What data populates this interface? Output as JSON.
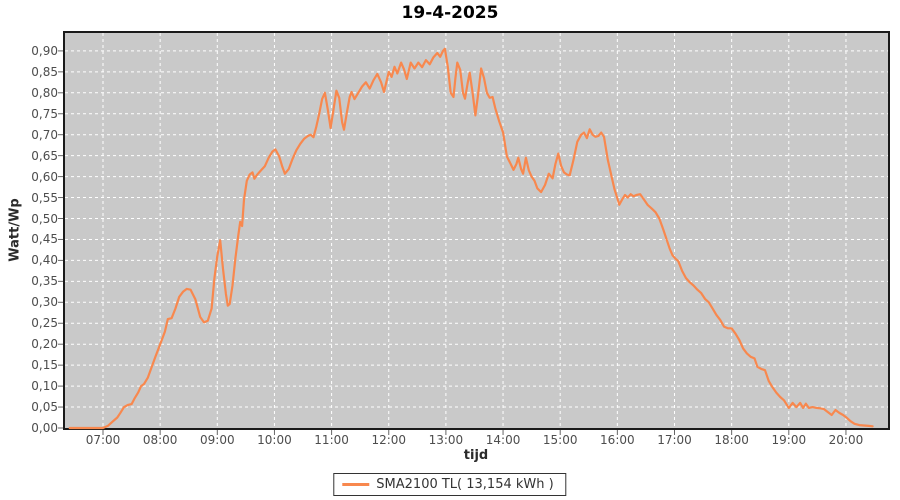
{
  "title": "19-4-2025",
  "colors": {
    "series": "#F8884E",
    "plot_background": "#C9C9C9",
    "gridline": "#FFFFFF",
    "plot_border": "#1A1A1A",
    "tick_mark": "#666666",
    "tick_text": "#4D4D4D",
    "legend_border": "#333333"
  },
  "y_axis": {
    "label": "Watt/Wp",
    "ticks": [
      {
        "label": "0,00",
        "v": 0.0
      },
      {
        "label": "0,05",
        "v": 0.05
      },
      {
        "label": "0,10",
        "v": 0.1
      },
      {
        "label": "0,15",
        "v": 0.15
      },
      {
        "label": "0,20",
        "v": 0.2
      },
      {
        "label": "0,25",
        "v": 0.25
      },
      {
        "label": "0,30",
        "v": 0.3
      },
      {
        "label": "0,35",
        "v": 0.35
      },
      {
        "label": "0,40",
        "v": 0.4
      },
      {
        "label": "0,45",
        "v": 0.45
      },
      {
        "label": "0,50",
        "v": 0.5
      },
      {
        "label": "0,55",
        "v": 0.55
      },
      {
        "label": "0,60",
        "v": 0.6
      },
      {
        "label": "0,65",
        "v": 0.65
      },
      {
        "label": "0,70",
        "v": 0.7
      },
      {
        "label": "0,75",
        "v": 0.75
      },
      {
        "label": "0,80",
        "v": 0.8
      },
      {
        "label": "0,85",
        "v": 0.85
      },
      {
        "label": "0,90",
        "v": 0.9
      }
    ]
  },
  "x_axis": {
    "label": "tijd",
    "ticks": [
      {
        "label": "07:00",
        "t": 7
      },
      {
        "label": "08:00",
        "t": 8
      },
      {
        "label": "09:00",
        "t": 9
      },
      {
        "label": "10:00",
        "t": 10
      },
      {
        "label": "11:00",
        "t": 11
      },
      {
        "label": "12:00",
        "t": 12
      },
      {
        "label": "13:00",
        "t": 13
      },
      {
        "label": "14:00",
        "t": 14
      },
      {
        "label": "15:00",
        "t": 15
      },
      {
        "label": "16:00",
        "t": 16
      },
      {
        "label": "17:00",
        "t": 17
      },
      {
        "label": "18:00",
        "t": 18
      },
      {
        "label": "19:00",
        "t": 19
      },
      {
        "label": "20:00",
        "t": 20
      }
    ]
  },
  "legend": {
    "label": "SMA2100 TL( 13,154 kWh )"
  },
  "chart_data": {
    "type": "line",
    "title": "19-4-2025",
    "xlabel": "tijd",
    "ylabel": "Watt/Wp",
    "ylim": [
      0,
      0.9
    ],
    "xlim_time": [
      "06:19",
      "20:41"
    ],
    "grid": true,
    "legend_position": "bottom-center",
    "series": [
      {
        "name": "SMA2100 TL( 13,154 kWh )",
        "color": "#F8884E",
        "points": [
          [
            "06:25",
            0
          ],
          [
            "06:40",
            0
          ],
          [
            "07:00",
            0
          ],
          [
            "07:05",
            0.005
          ],
          [
            "07:10",
            0.015
          ],
          [
            "07:15",
            0.025
          ],
          [
            "07:18",
            0.035
          ],
          [
            "07:22",
            0.05
          ],
          [
            "07:26",
            0.055
          ],
          [
            "07:30",
            0.057
          ],
          [
            "07:33",
            0.07
          ],
          [
            "07:37",
            0.085
          ],
          [
            "07:40",
            0.1
          ],
          [
            "07:43",
            0.105
          ],
          [
            "07:47",
            0.12
          ],
          [
            "07:51",
            0.145
          ],
          [
            "07:55",
            0.17
          ],
          [
            "08:00",
            0.2
          ],
          [
            "08:05",
            0.23
          ],
          [
            "08:08",
            0.26
          ],
          [
            "08:12",
            0.262
          ],
          [
            "08:16",
            0.285
          ],
          [
            "08:20",
            0.313
          ],
          [
            "08:24",
            0.325
          ],
          [
            "08:28",
            0.332
          ],
          [
            "08:32",
            0.33
          ],
          [
            "08:37",
            0.307
          ],
          [
            "08:42",
            0.265
          ],
          [
            "08:46",
            0.252
          ],
          [
            "08:50",
            0.256
          ],
          [
            "08:54",
            0.285
          ],
          [
            "08:57",
            0.357
          ],
          [
            "09:00",
            0.41
          ],
          [
            "09:03",
            0.448
          ],
          [
            "09:06",
            0.38
          ],
          [
            "09:09",
            0.32
          ],
          [
            "09:11",
            0.292
          ],
          [
            "09:13",
            0.296
          ],
          [
            "09:16",
            0.34
          ],
          [
            "09:19",
            0.405
          ],
          [
            "09:22",
            0.46
          ],
          [
            "09:24",
            0.492
          ],
          [
            "09:26",
            0.482
          ],
          [
            "09:28",
            0.545
          ],
          [
            "09:31",
            0.59
          ],
          [
            "09:34",
            0.605
          ],
          [
            "09:37",
            0.61
          ],
          [
            "09:39",
            0.595
          ],
          [
            "09:42",
            0.605
          ],
          [
            "09:46",
            0.615
          ],
          [
            "09:50",
            0.625
          ],
          [
            "09:54",
            0.645
          ],
          [
            "09:58",
            0.66
          ],
          [
            "10:01",
            0.665
          ],
          [
            "10:05",
            0.648
          ],
          [
            "10:08",
            0.625
          ],
          [
            "10:11",
            0.607
          ],
          [
            "10:15",
            0.618
          ],
          [
            "10:19",
            0.642
          ],
          [
            "10:23",
            0.663
          ],
          [
            "10:27",
            0.678
          ],
          [
            "10:31",
            0.69
          ],
          [
            "10:35",
            0.697
          ],
          [
            "10:38",
            0.7
          ],
          [
            "10:41",
            0.694
          ],
          [
            "10:44",
            0.72
          ],
          [
            "10:47",
            0.75
          ],
          [
            "10:50",
            0.785
          ],
          [
            "10:53",
            0.8
          ],
          [
            "10:56",
            0.76
          ],
          [
            "10:59",
            0.716
          ],
          [
            "11:02",
            0.76
          ],
          [
            "11:05",
            0.805
          ],
          [
            "11:08",
            0.788
          ],
          [
            "11:11",
            0.73
          ],
          [
            "11:13",
            0.712
          ],
          [
            "11:16",
            0.752
          ],
          [
            "11:19",
            0.79
          ],
          [
            "11:21",
            0.802
          ],
          [
            "11:24",
            0.785
          ],
          [
            "11:28",
            0.8
          ],
          [
            "11:32",
            0.815
          ],
          [
            "11:36",
            0.825
          ],
          [
            "11:40",
            0.81
          ],
          [
            "11:44",
            0.83
          ],
          [
            "11:48",
            0.845
          ],
          [
            "11:52",
            0.825
          ],
          [
            "11:55",
            0.802
          ],
          [
            "11:58",
            0.83
          ],
          [
            "12:00",
            0.85
          ],
          [
            "12:03",
            0.838
          ],
          [
            "12:06",
            0.862
          ],
          [
            "12:09",
            0.846
          ],
          [
            "12:13",
            0.872
          ],
          [
            "12:16",
            0.856
          ],
          [
            "12:19",
            0.833
          ],
          [
            "12:23",
            0.872
          ],
          [
            "12:27",
            0.858
          ],
          [
            "12:31",
            0.872
          ],
          [
            "12:35",
            0.861
          ],
          [
            "12:39",
            0.878
          ],
          [
            "12:43",
            0.868
          ],
          [
            "12:47",
            0.885
          ],
          [
            "12:51",
            0.895
          ],
          [
            "12:54",
            0.886
          ],
          [
            "12:57",
            0.9
          ],
          [
            "12:59",
            0.905
          ],
          [
            "13:02",
            0.862
          ],
          [
            "13:05",
            0.8
          ],
          [
            "13:08",
            0.79
          ],
          [
            "13:10",
            0.835
          ],
          [
            "13:12",
            0.872
          ],
          [
            "13:15",
            0.855
          ],
          [
            "13:18",
            0.8
          ],
          [
            "13:20",
            0.786
          ],
          [
            "13:23",
            0.825
          ],
          [
            "13:25",
            0.848
          ],
          [
            "13:28",
            0.8
          ],
          [
            "13:31",
            0.746
          ],
          [
            "13:34",
            0.8
          ],
          [
            "13:37",
            0.858
          ],
          [
            "13:40",
            0.835
          ],
          [
            "13:43",
            0.8
          ],
          [
            "13:46",
            0.788
          ],
          [
            "13:49",
            0.79
          ],
          [
            "13:52",
            0.762
          ],
          [
            "13:56",
            0.732
          ],
          [
            "14:00",
            0.705
          ],
          [
            "14:04",
            0.648
          ],
          [
            "14:08",
            0.63
          ],
          [
            "14:11",
            0.616
          ],
          [
            "14:14",
            0.63
          ],
          [
            "14:16",
            0.645
          ],
          [
            "14:19",
            0.618
          ],
          [
            "14:21",
            0.607
          ],
          [
            "14:24",
            0.645
          ],
          [
            "14:27",
            0.615
          ],
          [
            "14:30",
            0.6
          ],
          [
            "14:33",
            0.59
          ],
          [
            "14:36",
            0.572
          ],
          [
            "14:40",
            0.563
          ],
          [
            "14:44",
            0.58
          ],
          [
            "14:48",
            0.607
          ],
          [
            "14:52",
            0.596
          ],
          [
            "14:55",
            0.63
          ],
          [
            "14:58",
            0.655
          ],
          [
            "15:01",
            0.625
          ],
          [
            "15:04",
            0.61
          ],
          [
            "15:07",
            0.605
          ],
          [
            "15:10",
            0.603
          ],
          [
            "15:14",
            0.64
          ],
          [
            "15:18",
            0.683
          ],
          [
            "15:22",
            0.7
          ],
          [
            "15:25",
            0.705
          ],
          [
            "15:28",
            0.692
          ],
          [
            "15:31",
            0.713
          ],
          [
            "15:34",
            0.7
          ],
          [
            "15:37",
            0.695
          ],
          [
            "15:40",
            0.697
          ],
          [
            "15:43",
            0.705
          ],
          [
            "15:46",
            0.695
          ],
          [
            "15:50",
            0.64
          ],
          [
            "15:54",
            0.6
          ],
          [
            "15:57",
            0.57
          ],
          [
            "16:00",
            0.548
          ],
          [
            "16:02",
            0.533
          ],
          [
            "16:05",
            0.545
          ],
          [
            "16:08",
            0.556
          ],
          [
            "16:11",
            0.55
          ],
          [
            "16:14",
            0.558
          ],
          [
            "16:17",
            0.553
          ],
          [
            "16:20",
            0.556
          ],
          [
            "16:24",
            0.558
          ],
          [
            "16:28",
            0.545
          ],
          [
            "16:32",
            0.532
          ],
          [
            "16:36",
            0.524
          ],
          [
            "16:40",
            0.515
          ],
          [
            "16:44",
            0.5
          ],
          [
            "16:48",
            0.475
          ],
          [
            "16:52",
            0.448
          ],
          [
            "16:55",
            0.428
          ],
          [
            "16:58",
            0.412
          ],
          [
            "17:01",
            0.404
          ],
          [
            "17:04",
            0.398
          ],
          [
            "17:08",
            0.375
          ],
          [
            "17:12",
            0.358
          ],
          [
            "17:16",
            0.348
          ],
          [
            "17:20",
            0.34
          ],
          [
            "17:24",
            0.33
          ],
          [
            "17:28",
            0.322
          ],
          [
            "17:32",
            0.308
          ],
          [
            "17:36",
            0.3
          ],
          [
            "17:40",
            0.285
          ],
          [
            "17:44",
            0.27
          ],
          [
            "17:48",
            0.258
          ],
          [
            "17:52",
            0.242
          ],
          [
            "17:56",
            0.238
          ],
          [
            "18:00",
            0.238
          ],
          [
            "18:04",
            0.225
          ],
          [
            "18:08",
            0.21
          ],
          [
            "18:12",
            0.19
          ],
          [
            "18:16",
            0.178
          ],
          [
            "18:20",
            0.17
          ],
          [
            "18:24",
            0.166
          ],
          [
            "18:27",
            0.146
          ],
          [
            "18:31",
            0.141
          ],
          [
            "18:35",
            0.138
          ],
          [
            "18:39",
            0.112
          ],
          [
            "18:43",
            0.097
          ],
          [
            "18:47",
            0.084
          ],
          [
            "18:51",
            0.074
          ],
          [
            "18:55",
            0.066
          ],
          [
            "19:00",
            0.048
          ],
          [
            "19:04",
            0.06
          ],
          [
            "19:08",
            0.05
          ],
          [
            "19:12",
            0.06
          ],
          [
            "19:15",
            0.048
          ],
          [
            "19:18",
            0.058
          ],
          [
            "19:21",
            0.048
          ],
          [
            "19:25",
            0.05
          ],
          [
            "19:29",
            0.048
          ],
          [
            "19:33",
            0.047
          ],
          [
            "19:37",
            0.045
          ],
          [
            "19:41",
            0.038
          ],
          [
            "19:45",
            0.031
          ],
          [
            "19:49",
            0.043
          ],
          [
            "19:53",
            0.036
          ],
          [
            "19:57",
            0.031
          ],
          [
            "20:01",
            0.024
          ],
          [
            "20:05",
            0.016
          ],
          [
            "20:09",
            0.01
          ],
          [
            "20:14",
            0.007
          ],
          [
            "20:19",
            0.006
          ],
          [
            "20:24",
            0.005
          ],
          [
            "20:28",
            0.004
          ]
        ]
      }
    ]
  }
}
